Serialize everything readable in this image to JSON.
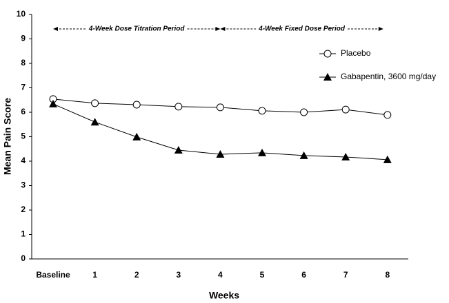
{
  "chart_data": {
    "type": "line",
    "x_label": "Weeks",
    "y_label": "Mean Pain Score",
    "categories": [
      "Baseline",
      "1",
      "2",
      "3",
      "4",
      "5",
      "6",
      "7",
      "8"
    ],
    "annotations": [
      "4-Week Dose Titration Period",
      "4-Week Fixed Dose Period"
    ],
    "series": [
      {
        "name": "Placebo",
        "color": "#000000",
        "marker": "circle",
        "values": [
          6.54,
          6.37,
          6.31,
          6.23,
          6.2,
          6.06,
          6.0,
          6.11,
          5.89
        ]
      },
      {
        "name": "Gabapentin, 3600 mg/day",
        "color": "#000000",
        "marker": "triangle",
        "values": [
          6.34,
          5.6,
          4.99,
          4.45,
          4.28,
          4.34,
          4.23,
          4.17,
          4.06
        ]
      }
    ],
    "ylim": [
      0,
      10
    ],
    "yticks": [
      0,
      1,
      2,
      3,
      4,
      5,
      6,
      7,
      8,
      9,
      10
    ],
    "grid": false,
    "legend": "upper right"
  }
}
